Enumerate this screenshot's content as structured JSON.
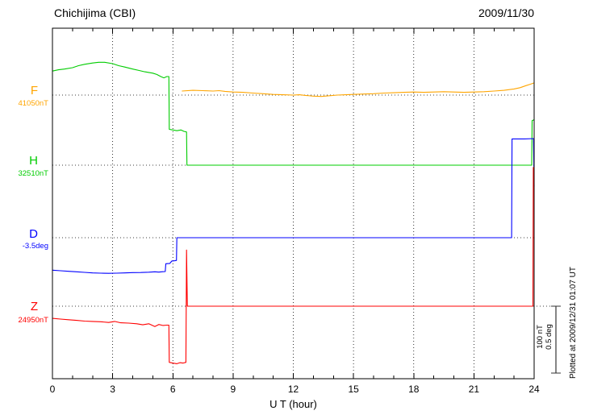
{
  "chart_data": {
    "type": "line",
    "title": "Chichijima (CBI)",
    "date": "2009/11/30",
    "xlabel": "U T (hour)",
    "x_range": [
      0,
      24
    ],
    "x_ticks": [
      0,
      3,
      6,
      9,
      12,
      15,
      18,
      21,
      24
    ],
    "x_minor_tick_step": 1,
    "grid": "dotted vertical lines every 3 h; dotted horizontal line at each component baseline",
    "scale_bar": {
      "lines": [
        "100 nT",
        "0.5 deg"
      ]
    },
    "plotted_at": "Plotted at 2009/12/31 01:07 UT",
    "series": [
      {
        "id": "F",
        "label": "F",
        "baseline_label": "41050nT",
        "baseline_value": 41050,
        "unit": "nT",
        "color": "#FFA500",
        "points": [
          [
            6.45,
            41056
          ],
          [
            7,
            41057
          ],
          [
            7.5,
            41056.5
          ],
          [
            8,
            41056
          ],
          [
            8.3,
            41056.5
          ],
          [
            8.6,
            41055.5
          ],
          [
            9,
            41054.5
          ],
          [
            9.5,
            41054
          ],
          [
            10,
            41053
          ],
          [
            10.5,
            41052
          ],
          [
            11,
            41051
          ],
          [
            11.5,
            41050.5
          ],
          [
            12,
            41050
          ],
          [
            12.3,
            41050.5
          ],
          [
            12.6,
            41049.5
          ],
          [
            13,
            41048.5
          ],
          [
            13.4,
            41048
          ],
          [
            13.8,
            41049
          ],
          [
            14.2,
            41050
          ],
          [
            14.6,
            41050.5
          ],
          [
            15,
            41051
          ],
          [
            15.5,
            41051.5
          ],
          [
            16,
            41052
          ],
          [
            16.5,
            41053
          ],
          [
            17,
            41053.5
          ],
          [
            17.5,
            41054
          ],
          [
            18,
            41054.5
          ],
          [
            18.5,
            41054
          ],
          [
            19,
            41054.5
          ],
          [
            19.5,
            41055
          ],
          [
            20,
            41054.5
          ],
          [
            20.5,
            41054
          ],
          [
            21,
            41054.5
          ],
          [
            21.5,
            41055
          ],
          [
            22,
            41056
          ],
          [
            22.5,
            41057
          ],
          [
            23,
            41059
          ],
          [
            23.3,
            41061
          ],
          [
            23.6,
            41064
          ],
          [
            23.8,
            41066
          ],
          [
            24,
            41068
          ]
        ]
      },
      {
        "id": "H",
        "label": "H",
        "baseline_label": "32510nT",
        "baseline_value": 32510,
        "unit": "nT",
        "color": "#00CC00",
        "points": [
          [
            0,
            32649
          ],
          [
            0.3,
            32651
          ],
          [
            0.6,
            32652
          ],
          [
            1,
            32654
          ],
          [
            1.3,
            32657
          ],
          [
            1.6,
            32659
          ],
          [
            2,
            32661
          ],
          [
            2.3,
            32662
          ],
          [
            2.6,
            32662
          ],
          [
            3,
            32660
          ],
          [
            3.3,
            32657
          ],
          [
            3.6,
            32655
          ],
          [
            4,
            32652
          ],
          [
            4.3,
            32650
          ],
          [
            4.6,
            32648
          ],
          [
            5,
            32646
          ],
          [
            5.2,
            32644
          ],
          [
            5.4,
            32641
          ],
          [
            5.55,
            32639
          ],
          [
            5.7,
            32641
          ],
          [
            5.8,
            32641
          ],
          [
            5.82,
            32563
          ],
          [
            6,
            32562
          ],
          [
            6.2,
            32561
          ],
          [
            6.4,
            32562
          ],
          [
            6.55,
            32560
          ],
          [
            6.68,
            32559
          ],
          [
            6.7,
            32510
          ],
          [
            7,
            32510
          ],
          [
            10,
            32510
          ],
          [
            14,
            32510
          ],
          [
            18,
            32510
          ],
          [
            22,
            32510
          ],
          [
            23.88,
            32510
          ],
          [
            23.9,
            32576
          ],
          [
            24,
            32577
          ]
        ]
      },
      {
        "id": "D",
        "label": "D",
        "baseline_label": "-3.5deg",
        "baseline_value": -3.5,
        "unit": "deg",
        "color": "#0000FF",
        "points": [
          [
            0,
            -3.74
          ],
          [
            0.4,
            -3.744
          ],
          [
            0.8,
            -3.748
          ],
          [
            1.2,
            -3.752
          ],
          [
            1.6,
            -3.756
          ],
          [
            2,
            -3.76
          ],
          [
            2.4,
            -3.762
          ],
          [
            2.8,
            -3.763
          ],
          [
            3.2,
            -3.762
          ],
          [
            3.6,
            -3.76
          ],
          [
            4,
            -3.758
          ],
          [
            4.4,
            -3.757
          ],
          [
            4.8,
            -3.755
          ],
          [
            5.1,
            -3.752
          ],
          [
            5.3,
            -3.754
          ],
          [
            5.5,
            -3.751
          ],
          [
            5.62,
            -3.75
          ],
          [
            5.65,
            -3.692
          ],
          [
            5.85,
            -3.69
          ],
          [
            5.95,
            -3.672
          ],
          [
            6.1,
            -3.67
          ],
          [
            6.18,
            -3.668
          ],
          [
            6.2,
            -3.5
          ],
          [
            7,
            -3.5
          ],
          [
            12,
            -3.5
          ],
          [
            18,
            -3.5
          ],
          [
            22.88,
            -3.5
          ],
          [
            22.9,
            -2.77
          ],
          [
            23.5,
            -2.77
          ],
          [
            23.97,
            -2.768
          ],
          [
            24,
            -3.12
          ]
        ]
      },
      {
        "id": "Z",
        "label": "Z",
        "baseline_label": "24950nT",
        "baseline_value": 24950,
        "unit": "nT",
        "color": "#FF0000",
        "points": [
          [
            0,
            24932
          ],
          [
            0.4,
            24931
          ],
          [
            0.8,
            24930
          ],
          [
            1.2,
            24929
          ],
          [
            1.6,
            24928
          ],
          [
            2,
            24927.5
          ],
          [
            2.4,
            24927
          ],
          [
            2.8,
            24926
          ],
          [
            3.1,
            24927.5
          ],
          [
            3.4,
            24925.5
          ],
          [
            3.8,
            24925
          ],
          [
            4.2,
            24924
          ],
          [
            4.5,
            24922.5
          ],
          [
            4.8,
            24924
          ],
          [
            5.1,
            24920
          ],
          [
            5.3,
            24923
          ],
          [
            5.5,
            24921.5
          ],
          [
            5.7,
            24922
          ],
          [
            5.8,
            24922
          ],
          [
            5.82,
            24867
          ],
          [
            6,
            24866
          ],
          [
            6.2,
            24865
          ],
          [
            6.35,
            24866.5
          ],
          [
            6.5,
            24866
          ],
          [
            6.65,
            24867
          ],
          [
            6.68,
            25033
          ],
          [
            6.72,
            24950
          ],
          [
            7,
            24950
          ],
          [
            12,
            24950
          ],
          [
            18,
            24950
          ],
          [
            23.9,
            24950
          ],
          [
            23.94,
            24950
          ],
          [
            23.96,
            25155
          ],
          [
            24,
            25153
          ]
        ]
      }
    ]
  }
}
